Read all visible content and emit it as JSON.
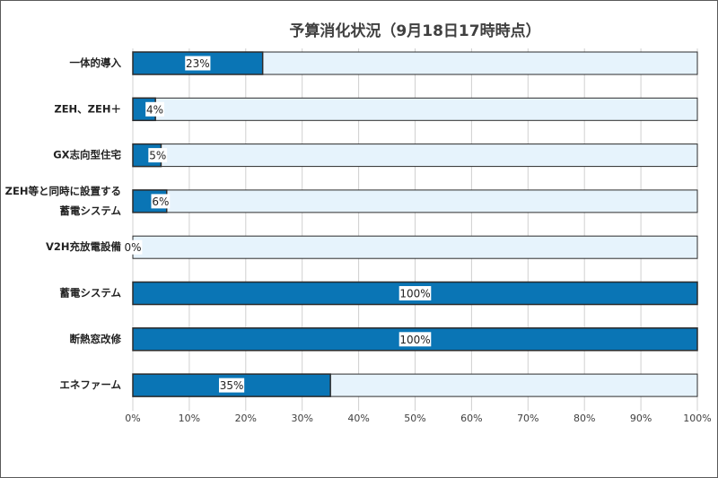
{
  "chart_data": {
    "type": "bar",
    "orientation": "horizontal",
    "stacked_to_100": true,
    "title": "予算消化状況（9月18日17時時点）",
    "categories": [
      [
        "一体的導入"
      ],
      [
        "ZEH、ZEH＋"
      ],
      [
        "GX志向型住宅"
      ],
      [
        "ZEH等と同時に設置する",
        "蓄電システム"
      ],
      [
        "V2H充放電設備"
      ],
      [
        "蓄電システム"
      ],
      [
        "断熱窓改修"
      ],
      [
        "エネファーム"
      ]
    ],
    "values": [
      23,
      4,
      5,
      6,
      0,
      100,
      100,
      35
    ],
    "data_labels": [
      "23%",
      "4%",
      "5%",
      "6%",
      "0%",
      "100%",
      "100%",
      "35%"
    ],
    "x_ticks": [
      "0%",
      "10%",
      "20%",
      "30%",
      "40%",
      "50%",
      "60%",
      "70%",
      "80%",
      "90%",
      "100%"
    ],
    "xlim": [
      0,
      100
    ],
    "grid": "vertical",
    "legend": "none",
    "colors": {
      "consumed": "#0a75b5",
      "remaining": "#e6f3fc",
      "bar_border": "#2b2b2b",
      "gridline": "#d0d0d0"
    }
  }
}
